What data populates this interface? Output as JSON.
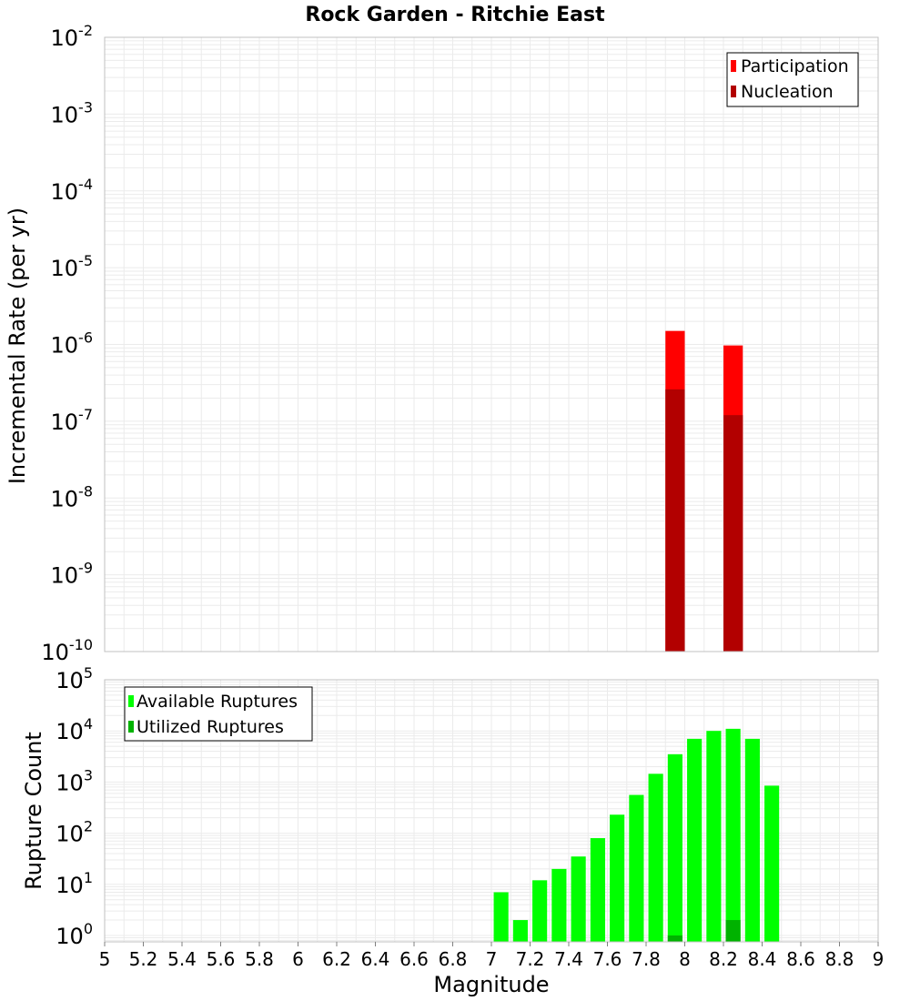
{
  "title": "Rock Garden - Ritchie East",
  "colors": {
    "participation": "#ff0000",
    "nucleation": "#b20000",
    "available": "#00ff00",
    "utilized": "#00b200",
    "grid": "#ebebeb",
    "frame": "#c0c0c0"
  },
  "chart_data": [
    {
      "type": "bar",
      "panel": "top",
      "ylabel": "Incremental Rate (per yr)",
      "yscale": "log",
      "ylim": [
        1e-10,
        0.01
      ],
      "xlim": [
        5,
        9
      ],
      "y_tick_labels": [
        {
          "base": "10",
          "exp": "-10"
        },
        {
          "base": "10",
          "exp": "-9"
        },
        {
          "base": "10",
          "exp": "-8"
        },
        {
          "base": "10",
          "exp": "-7"
        },
        {
          "base": "10",
          "exp": "-6"
        },
        {
          "base": "10",
          "exp": "-5"
        },
        {
          "base": "10",
          "exp": "-4"
        },
        {
          "base": "10",
          "exp": "-3"
        },
        {
          "base": "10",
          "exp": "-2"
        }
      ],
      "legend": [
        "Participation",
        "Nucleation"
      ],
      "legend_position": "top-right",
      "bin_width": 0.1,
      "series": [
        {
          "name": "Participation",
          "x": [
            7.95,
            8.25
          ],
          "values": [
            1.5e-06,
            9.7e-07
          ]
        },
        {
          "name": "Nucleation",
          "x": [
            7.95,
            8.25
          ],
          "values": [
            2.6e-07,
            1.2e-07
          ]
        }
      ]
    },
    {
      "type": "bar",
      "panel": "bottom",
      "ylabel": "Rupture Count",
      "xlabel": "Magnitude",
      "yscale": "log",
      "ylim": [
        0.75,
        100000
      ],
      "xlim": [
        5,
        9
      ],
      "x_tick_labels": [
        "5",
        "5.2",
        "5.4",
        "5.6",
        "5.8",
        "6",
        "6.2",
        "6.4",
        "6.6",
        "6.8",
        "7",
        "7.2",
        "7.4",
        "7.6",
        "7.8",
        "8",
        "8.2",
        "8.4",
        "8.6",
        "8.8",
        "9"
      ],
      "y_tick_labels": [
        {
          "base": "10",
          "exp": "0"
        },
        {
          "base": "10",
          "exp": "1"
        },
        {
          "base": "10",
          "exp": "2"
        },
        {
          "base": "10",
          "exp": "3"
        },
        {
          "base": "10",
          "exp": "4"
        },
        {
          "base": "10",
          "exp": "5"
        }
      ],
      "legend": [
        "Available Ruptures",
        "Utilized Ruptures"
      ],
      "legend_position": "top-left",
      "bin_width": 0.1,
      "series": [
        {
          "name": "Available Ruptures",
          "x": [
            7.05,
            7.15,
            7.25,
            7.35,
            7.45,
            7.55,
            7.65,
            7.75,
            7.85,
            7.95,
            8.05,
            8.15,
            8.25,
            8.35,
            8.45
          ],
          "values": [
            7,
            2,
            12,
            20,
            35,
            80,
            230,
            560,
            1450,
            3500,
            7000,
            10000,
            11000,
            7000,
            850
          ]
        },
        {
          "name": "Utilized Ruptures",
          "x": [
            7.95,
            8.25
          ],
          "values": [
            1,
            2
          ]
        }
      ]
    }
  ]
}
